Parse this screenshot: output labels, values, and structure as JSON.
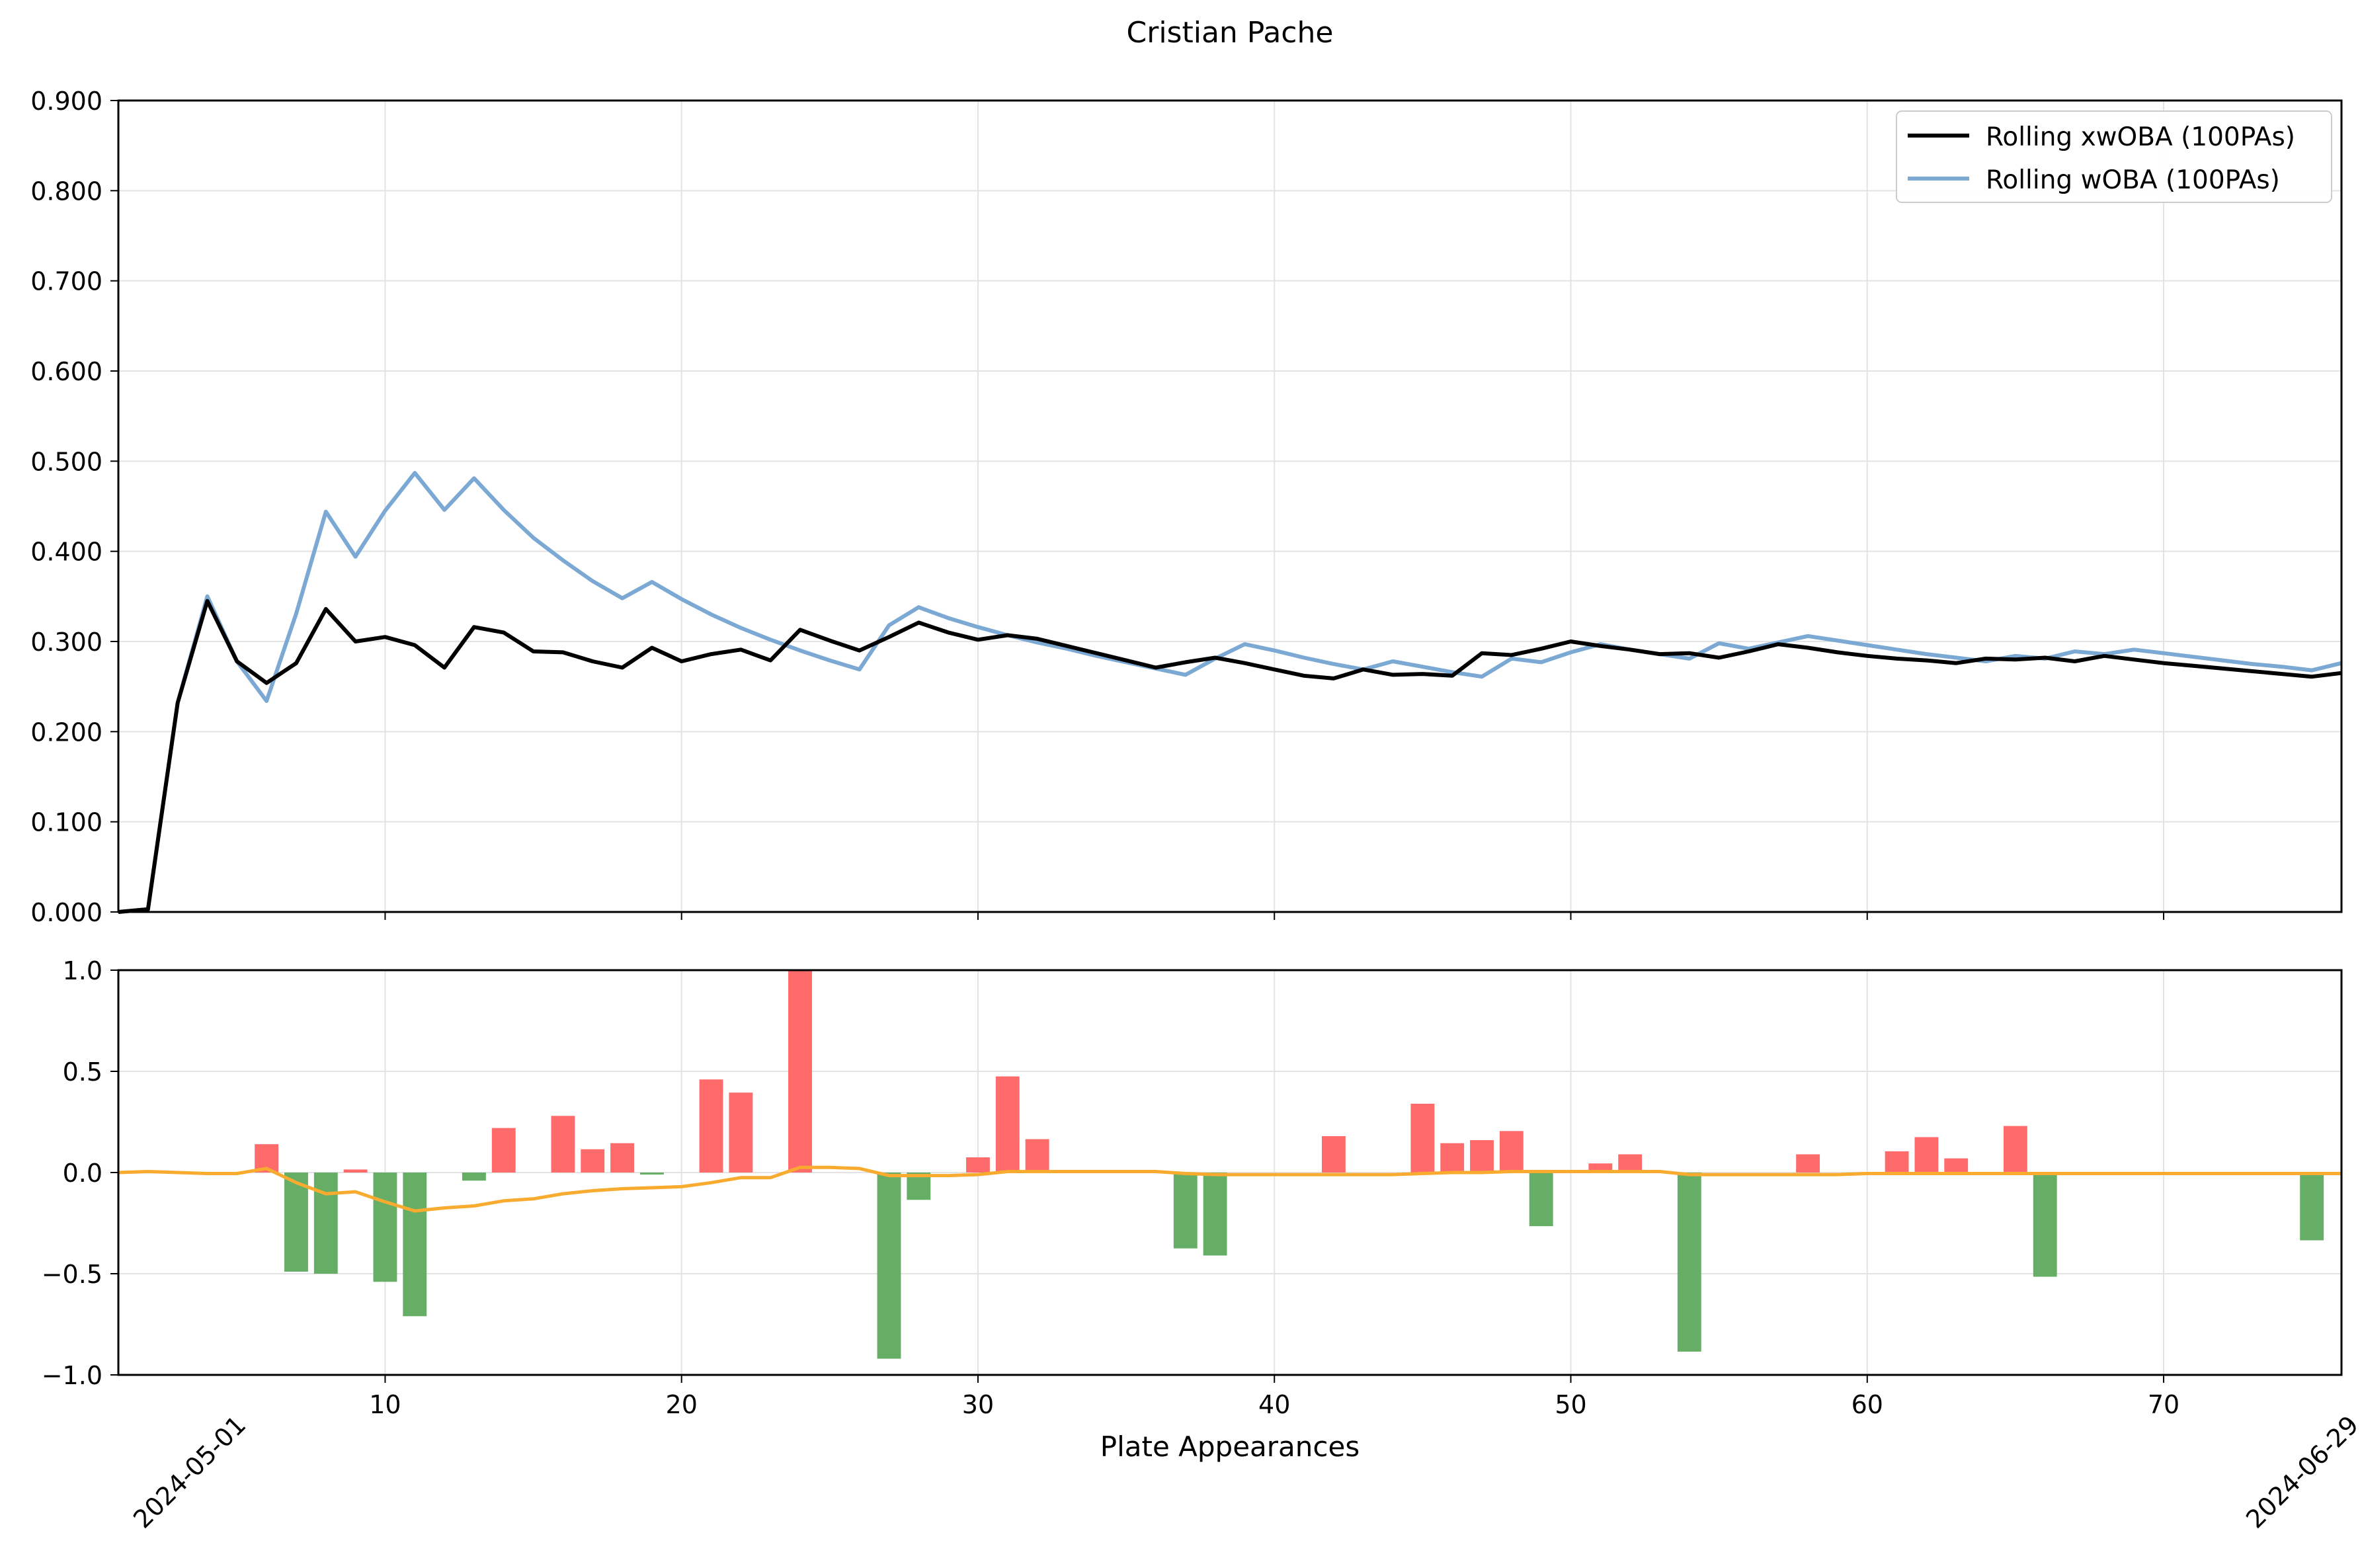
{
  "chart_data": [
    {
      "type": "line",
      "title": "Cristian Pache",
      "ylim": [
        0,
        0.9
      ],
      "yticks": [
        "0.000",
        "0.100",
        "0.200",
        "0.300",
        "0.400",
        "0.500",
        "0.600",
        "0.700",
        "0.800",
        "0.900"
      ],
      "xlim": [
        1,
        76
      ],
      "grid": true,
      "legend_position": "upper-right",
      "x": [
        1,
        2,
        3,
        4,
        5,
        6,
        7,
        8,
        9,
        10,
        11,
        12,
        13,
        14,
        15,
        16,
        17,
        18,
        19,
        20,
        21,
        22,
        23,
        24,
        25,
        26,
        27,
        28,
        29,
        30,
        31,
        32,
        33,
        34,
        35,
        36,
        37,
        38,
        39,
        40,
        41,
        42,
        43,
        44,
        45,
        46,
        47,
        48,
        49,
        50,
        51,
        52,
        53,
        54,
        55,
        56,
        57,
        58,
        59,
        60,
        61,
        62,
        63,
        64,
        65,
        66,
        67,
        68,
        69,
        70,
        71,
        72,
        73,
        74,
        75,
        76
      ],
      "series": [
        {
          "name": "Rolling xwOBA (100PAs)",
          "color": "#000000",
          "values": [
            0.0,
            0.003,
            0.232,
            0.345,
            0.278,
            0.254,
            0.276,
            0.336,
            0.3,
            0.305,
            0.296,
            0.271,
            0.316,
            0.31,
            0.289,
            0.288,
            0.278,
            0.271,
            0.293,
            0.278,
            0.286,
            0.291,
            0.279,
            0.313,
            0.301,
            0.29,
            0.305,
            0.321,
            0.31,
            0.302,
            0.307,
            0.303,
            0.295,
            0.287,
            0.279,
            0.271,
            0.277,
            0.282,
            0.276,
            0.269,
            0.262,
            0.259,
            0.269,
            0.263,
            0.264,
            0.262,
            0.287,
            0.285,
            0.292,
            0.3,
            0.295,
            0.291,
            0.286,
            0.287,
            0.282,
            0.289,
            0.297,
            0.293,
            0.288,
            0.284,
            0.281,
            0.279,
            0.276,
            0.281,
            0.28,
            0.282,
            0.278,
            0.284,
            0.28,
            0.276,
            0.273,
            0.27,
            0.267,
            0.264,
            0.261,
            0.265
          ]
        },
        {
          "name": "Rolling wOBA (100PAs)",
          "color": "#7BA9D3",
          "values": [
            0.0,
            0.003,
            0.232,
            0.35,
            0.278,
            0.234,
            0.331,
            0.444,
            0.394,
            0.445,
            0.487,
            0.446,
            0.481,
            0.446,
            0.415,
            0.39,
            0.367,
            0.348,
            0.366,
            0.347,
            0.33,
            0.315,
            0.302,
            0.29,
            0.279,
            0.269,
            0.318,
            0.338,
            0.326,
            0.316,
            0.307,
            0.299,
            0.292,
            0.284,
            0.277,
            0.27,
            0.263,
            0.281,
            0.297,
            0.29,
            0.282,
            0.275,
            0.269,
            0.278,
            0.272,
            0.266,
            0.261,
            0.281,
            0.277,
            0.288,
            0.297,
            0.291,
            0.286,
            0.281,
            0.298,
            0.292,
            0.299,
            0.306,
            0.301,
            0.296,
            0.291,
            0.286,
            0.282,
            0.278,
            0.284,
            0.281,
            0.289,
            0.286,
            0.291,
            0.287,
            0.283,
            0.279,
            0.275,
            0.272,
            0.268,
            0.276
          ]
        }
      ]
    },
    {
      "type": "bar",
      "xlabel": "Plate Appearances",
      "ylim": [
        -1,
        1
      ],
      "yticks": [
        "−1.0",
        "−0.5",
        "0.0",
        "0.5",
        "1.0"
      ],
      "xlim": [
        1,
        76
      ],
      "xticks": [
        "10",
        "20",
        "30",
        "40",
        "50",
        "60",
        "70"
      ],
      "date_labels": [
        "2024-05-01",
        "2024-06-29"
      ],
      "grid": true,
      "positive_color": "#FF6B6B",
      "negative_color": "#66AD66",
      "line_color": "#F8AB2F",
      "bars": [
        {
          "x": 6,
          "v": 0.14
        },
        {
          "x": 7,
          "v": -0.49
        },
        {
          "x": 8,
          "v": -0.5
        },
        {
          "x": 9,
          "v": 0.015
        },
        {
          "x": 10,
          "v": -0.54
        },
        {
          "x": 11,
          "v": -0.71
        },
        {
          "x": 13,
          "v": -0.04
        },
        {
          "x": 14,
          "v": 0.22
        },
        {
          "x": 16,
          "v": 0.28
        },
        {
          "x": 17,
          "v": 0.115
        },
        {
          "x": 18,
          "v": 0.145
        },
        {
          "x": 19,
          "v": -0.01
        },
        {
          "x": 21,
          "v": 0.46
        },
        {
          "x": 22,
          "v": 0.395
        },
        {
          "x": 24,
          "v": 1.0
        },
        {
          "x": 27,
          "v": -0.92
        },
        {
          "x": 28,
          "v": -0.135
        },
        {
          "x": 30,
          "v": 0.075
        },
        {
          "x": 31,
          "v": 0.475
        },
        {
          "x": 32,
          "v": 0.165
        },
        {
          "x": 37,
          "v": -0.375
        },
        {
          "x": 38,
          "v": -0.41
        },
        {
          "x": 42,
          "v": 0.18
        },
        {
          "x": 45,
          "v": 0.34
        },
        {
          "x": 46,
          "v": 0.145
        },
        {
          "x": 47,
          "v": 0.16
        },
        {
          "x": 48,
          "v": 0.205
        },
        {
          "x": 49,
          "v": -0.265
        },
        {
          "x": 51,
          "v": 0.045
        },
        {
          "x": 52,
          "v": 0.09
        },
        {
          "x": 54,
          "v": -0.885
        },
        {
          "x": 58,
          "v": 0.09
        },
        {
          "x": 61,
          "v": 0.105
        },
        {
          "x": 62,
          "v": 0.175
        },
        {
          "x": 63,
          "v": 0.07
        },
        {
          "x": 65,
          "v": 0.23
        },
        {
          "x": 66,
          "v": -0.515
        },
        {
          "x": 75,
          "v": -0.335
        }
      ],
      "line": [
        0.0,
        0.005,
        0.0,
        -0.005,
        -0.005,
        0.02,
        -0.05,
        -0.105,
        -0.095,
        -0.145,
        -0.19,
        -0.175,
        -0.165,
        -0.14,
        -0.13,
        -0.105,
        -0.09,
        -0.08,
        -0.075,
        -0.07,
        -0.05,
        -0.025,
        -0.025,
        0.025,
        0.025,
        0.02,
        -0.015,
        -0.015,
        -0.015,
        -0.01,
        0.005,
        0.005,
        0.005,
        0.005,
        0.005,
        0.005,
        -0.005,
        -0.01,
        -0.01,
        -0.01,
        -0.01,
        -0.01,
        -0.01,
        -0.01,
        -0.005,
        0.0,
        0.0,
        0.005,
        0.005,
        0.005,
        0.005,
        0.005,
        0.005,
        -0.01,
        -0.01,
        -0.01,
        -0.01,
        -0.01,
        -0.01,
        -0.005,
        -0.005,
        -0.005,
        -0.005,
        -0.005,
        -0.005,
        -0.005,
        -0.005,
        -0.005,
        -0.005,
        -0.005,
        -0.005,
        -0.005,
        -0.005,
        -0.005,
        -0.005,
        -0.005
      ]
    }
  ]
}
